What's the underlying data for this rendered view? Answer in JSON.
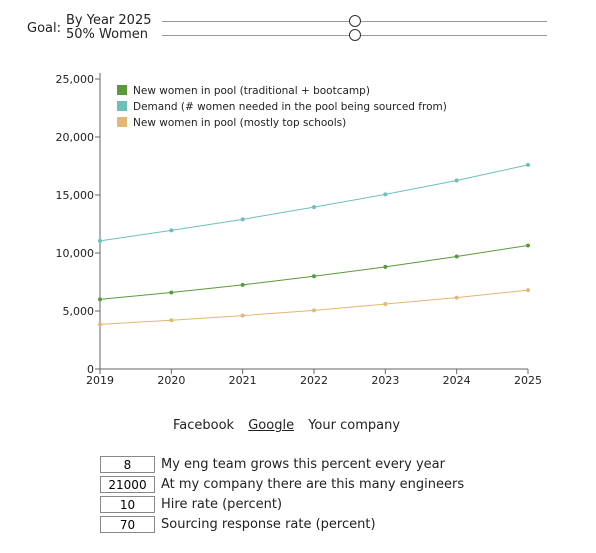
{
  "goal": {
    "label": "Goal:",
    "sliders": [
      {
        "label": "By Year 2025",
        "value_fraction": 0.5
      },
      {
        "label": "50% Women",
        "value_fraction": 0.5
      }
    ]
  },
  "tabs": [
    {
      "label": "Facebook",
      "active": false
    },
    {
      "label": "Google",
      "active": true
    },
    {
      "label": "Your company",
      "active": false
    }
  ],
  "inputs": [
    {
      "value": "8",
      "label": "My eng team grows this percent every year"
    },
    {
      "value": "21000",
      "label": "At my company there are this many engineers"
    },
    {
      "value": "10",
      "label": "Hire rate (percent)"
    },
    {
      "value": "70",
      "label": "Sourcing response rate (percent)"
    }
  ],
  "chart_data": {
    "type": "line",
    "x": [
      2019,
      2020,
      2021,
      2022,
      2023,
      2024,
      2025
    ],
    "xlim": [
      2019,
      2025
    ],
    "ylim": [
      0,
      25000
    ],
    "yticks": [
      0,
      5000,
      10000,
      15000,
      20000,
      25000
    ],
    "ytick_labels": [
      "0",
      "5,000",
      "10,000",
      "15,000",
      "20,000",
      "25,000"
    ],
    "legend_position": "top-left",
    "series": [
      {
        "name": "New women in pool (traditional + bootcamp)",
        "color": "#5a9a3c",
        "values": [
          6000,
          6600,
          7250,
          8000,
          8800,
          9700,
          10650
        ]
      },
      {
        "name": "Demand (# women needed in the pool being sourced from)",
        "color": "#6cc0b8",
        "values": [
          11050,
          11950,
          12900,
          13950,
          15050,
          16250,
          17600
        ]
      },
      {
        "name": "New women in pool (mostly top schools)",
        "color": "#e3b775",
        "values": [
          3850,
          4200,
          4600,
          5050,
          5600,
          6150,
          6800
        ]
      }
    ]
  }
}
